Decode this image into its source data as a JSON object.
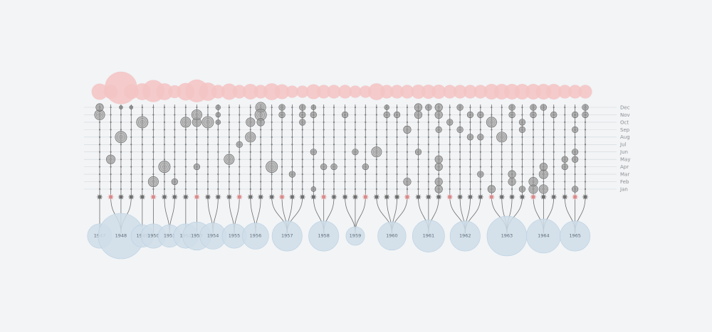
{
  "chart_data": {
    "type": "scatter",
    "title": "",
    "months": [
      "Jan",
      "Feb",
      "Mar",
      "Apr",
      "May",
      "Jun",
      "Jul",
      "Aug",
      "Sep",
      "Oct",
      "Nov",
      "Dec"
    ],
    "colors": {
      "background": "#f2f4f6",
      "top_circle": "#f4c4c4",
      "year_circle": "#cfdde9",
      "year_circle_stroke": "#b8cfe0",
      "grid": "#d4d7da",
      "stem": "#6d6d6d",
      "node_dark": "#6f6f6f",
      "node_pink": "#d98a8a"
    },
    "years": [
      {
        "year": "1947",
        "size": 9,
        "stems": [
          {
            "size": 1.4,
            "points": [
              [
                11,
                6
              ],
              [
                12,
                4
              ]
            ]
          }
        ]
      },
      {
        "year": "1948",
        "size": 20,
        "stems": [
          {
            "size": 1.1,
            "points": [
              [
                5,
                5
              ]
            ]
          },
          {
            "size": 3.9,
            "points": [
              [
                8,
                7
              ],
              [
                12,
                1
              ]
            ]
          },
          {
            "size": 1.2,
            "points": [
              [
                12,
                1
              ]
            ]
          }
        ]
      },
      {
        "year": "1949",
        "size": 8,
        "stems": [
          {
            "size": 1.5,
            "points": [
              [
                10,
                7
              ]
            ]
          }
        ]
      },
      {
        "year": "1950",
        "size": 9,
        "stems": [
          {
            "size": 2.3,
            "points": [
              [
                2,
                6
              ]
            ]
          }
        ]
      },
      {
        "year": "1951",
        "size": 8,
        "stems": [
          {
            "size": 1.5,
            "points": [
              [
                4,
                7
              ]
            ]
          },
          {
            "size": 0.9,
            "points": [
              [
                2,
                3
              ]
            ]
          }
        ]
      },
      {
        "year": "1952",
        "size": 9,
        "stems": [
          {
            "size": 1.6,
            "points": [
              [
                10,
                6
              ]
            ]
          }
        ]
      },
      {
        "year": "1953",
        "size": 11,
        "stems": [
          {
            "size": 2.4,
            "points": [
              [
                4,
                3
              ],
              [
                10,
                5
              ],
              [
                11,
                6
              ]
            ]
          }
        ]
      },
      {
        "year": "1954",
        "size": 10,
        "stems": [
          {
            "size": 1.7,
            "points": [
              [
                10,
                7
              ]
            ]
          },
          {
            "size": 1.0,
            "points": [
              [
                12,
                2
              ],
              [
                11,
                2
              ],
              [
                10,
                2
              ]
            ]
          }
        ]
      },
      {
        "year": "1955",
        "size": 9,
        "stems": [
          {
            "size": 1.4,
            "points": [
              [
                5,
                6
              ]
            ]
          },
          {
            "size": 1.0,
            "points": [
              [
                7,
                3
              ]
            ]
          }
        ]
      },
      {
        "year": "1956",
        "size": 10,
        "stems": [
          {
            "size": 1.3,
            "points": [
              [
                8,
                6
              ],
              [
                10,
                5
              ]
            ]
          },
          {
            "size": 1.0,
            "points": [
              [
                12,
                6
              ],
              [
                11,
                7
              ],
              [
                10,
                4
              ]
            ]
          }
        ]
      },
      {
        "year": "1957",
        "size": 12,
        "stems": [
          {
            "size": 1.5,
            "points": [
              [
                4,
                7
              ]
            ]
          },
          {
            "size": 1.2,
            "points": [
              [
                12,
                3
              ],
              [
                11,
                3
              ]
            ]
          },
          {
            "size": 0.8,
            "points": [
              [
                3,
                3
              ]
            ]
          },
          {
            "size": 0.8,
            "points": [
              [
                12,
                3
              ],
              [
                11,
                3
              ],
              [
                10,
                3
              ]
            ]
          }
        ]
      },
      {
        "year": "1958",
        "size": 12,
        "stems": [
          {
            "size": 1.2,
            "points": [
              [
                6,
                3
              ],
              [
                12,
                2
              ],
              [
                11,
                3
              ],
              [
                1,
                2
              ]
            ]
          },
          {
            "size": 1.0,
            "points": [
              [
                4,
                3
              ]
            ]
          },
          {
            "size": 1.0,
            "points": [
              [
                4,
                3
              ]
            ]
          }
        ]
      },
      {
        "year": "1959",
        "size": 6,
        "stems": [
          {
            "size": 1.0,
            "points": [
              [
                11,
                3
              ]
            ]
          },
          {
            "size": 0.8,
            "points": [
              [
                6,
                3
              ]
            ]
          },
          {
            "size": 0.8,
            "points": [
              [
                4,
                3
              ]
            ]
          }
        ]
      },
      {
        "year": "1960",
        "size": 11,
        "stems": [
          {
            "size": 1.5,
            "points": [
              [
                6,
                6
              ]
            ]
          },
          {
            "size": 1.0,
            "points": [
              [
                11,
                3
              ],
              [
                12,
                2
              ]
            ]
          },
          {
            "size": 1.0,
            "points": [
              [
                11,
                3
              ]
            ]
          },
          {
            "size": 1.0,
            "points": [
              [
                9,
                4
              ],
              [
                2,
                4
              ]
            ]
          }
        ]
      },
      {
        "year": "1961",
        "size": 13,
        "stems": [
          {
            "size": 1.1,
            "points": [
              [
                6,
                3
              ],
              [
                11,
                4
              ],
              [
                12,
                4
              ]
            ]
          },
          {
            "size": 1.1,
            "points": [
              [
                12,
                3
              ]
            ]
          },
          {
            "size": 1.1,
            "points": [
              [
                5,
                4
              ],
              [
                4,
                4
              ],
              [
                2,
                4
              ],
              [
                1,
                4
              ],
              [
                12,
                4
              ],
              [
                11,
                4
              ],
              [
                9,
                3
              ]
            ]
          }
        ]
      },
      {
        "year": "1962",
        "size": 12,
        "stems": [
          {
            "size": 1.0,
            "points": [
              [
                10,
                3
              ]
            ]
          },
          {
            "size": 1.0,
            "points": [
              [
                12,
                3
              ],
              [
                9,
                3
              ]
            ]
          },
          {
            "size": 1.0,
            "points": [
              [
                11,
                3
              ],
              [
                8,
                3
              ]
            ]
          },
          {
            "size": 1.0,
            "points": [
              [
                3,
                3
              ],
              [
                8,
                3
              ],
              [
                11,
                3
              ]
            ]
          }
        ]
      },
      {
        "year": "1963",
        "size": 17,
        "stems": [
          {
            "size": 1.3,
            "points": [
              [
                10,
                6
              ],
              [
                1,
                4
              ]
            ]
          },
          {
            "size": 1.3,
            "points": [
              [
                8,
                6
              ]
            ]
          },
          {
            "size": 1.3,
            "points": [
              [
                3,
                4
              ],
              [
                2,
                4
              ],
              [
                12,
                3
              ],
              [
                11,
                3
              ]
            ]
          },
          {
            "size": 1.3,
            "points": [
              [
                10,
                3
              ],
              [
                9,
                3
              ],
              [
                1,
                3
              ]
            ]
          }
        ]
      },
      {
        "year": "1964",
        "size": 14,
        "stems": [
          {
            "size": 1.3,
            "points": [
              [
                1,
                5
              ],
              [
                2,
                5
              ],
              [
                12,
                3
              ],
              [
                11,
                3
              ]
            ]
          },
          {
            "size": 1.3,
            "points": [
              [
                3,
                5
              ],
              [
                1,
                5
              ],
              [
                4,
                4
              ],
              [
                12,
                3
              ]
            ]
          },
          {
            "size": 1.3,
            "points": [
              [
                11,
                3
              ]
            ]
          }
        ]
      },
      {
        "year": "1965",
        "size": 12,
        "stems": [
          {
            "size": 1.0,
            "points": [
              [
                5,
                3
              ],
              [
                4,
                3
              ]
            ]
          },
          {
            "size": 1.0,
            "points": [
              [
                11,
                3
              ],
              [
                9,
                3
              ],
              [
                6,
                3
              ],
              [
                5,
                3
              ],
              [
                1,
                3
              ]
            ]
          },
          {
            "size": 1.0,
            "points": [
              [
                12,
                3
              ],
              [
                11,
                3
              ]
            ]
          }
        ]
      }
    ]
  }
}
